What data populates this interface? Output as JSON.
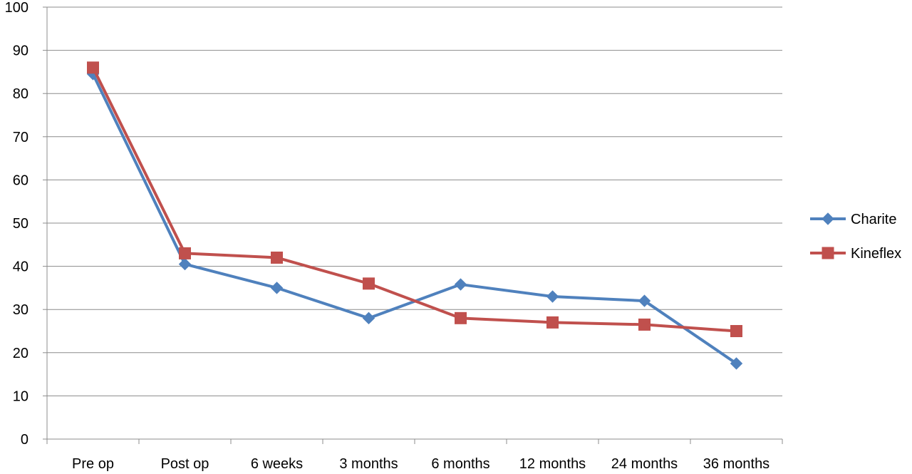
{
  "chart_data": {
    "type": "line",
    "title": "",
    "xlabel": "",
    "ylabel": "",
    "categories": [
      "Pre op",
      "Post op",
      "6 weeks",
      "3 months",
      "6 months",
      "12 months",
      "24 months",
      "36 months"
    ],
    "ylim": [
      0,
      100
    ],
    "yticks": [
      0,
      10,
      20,
      30,
      40,
      50,
      60,
      70,
      80,
      90,
      100
    ],
    "grid": true,
    "legend_position": "right",
    "series": [
      {
        "name": "Charite",
        "color": "#4F81BD",
        "marker": "diamond",
        "values": [
          84.5,
          40.5,
          35,
          28,
          35.8,
          33,
          32,
          17.5
        ]
      },
      {
        "name": "Kineflex",
        "color": "#C0504D",
        "marker": "square",
        "values": [
          86,
          43,
          42,
          36,
          28,
          27,
          26.5,
          25
        ]
      }
    ]
  }
}
